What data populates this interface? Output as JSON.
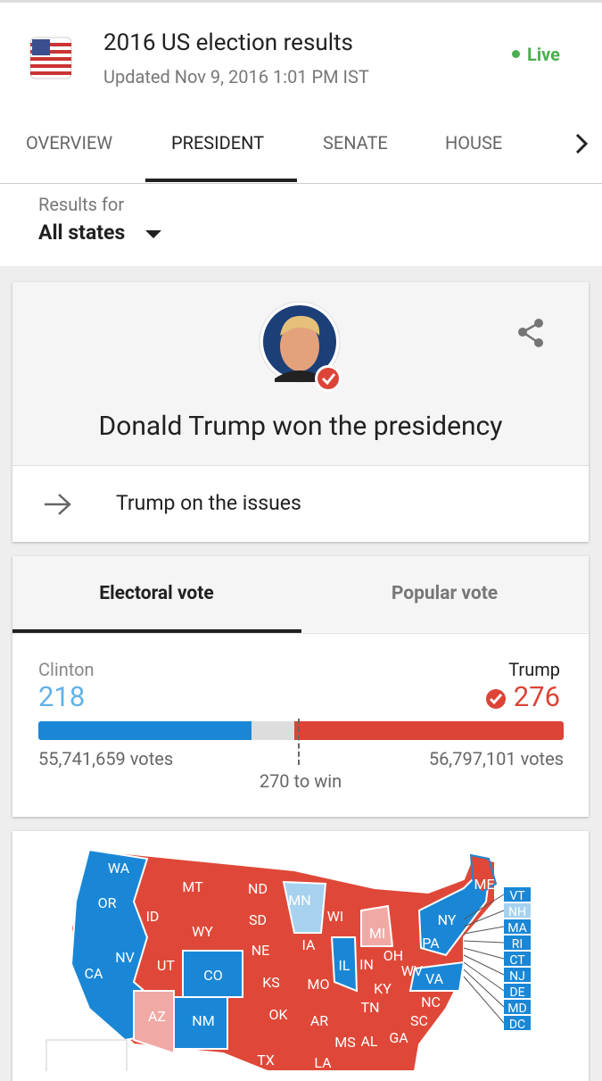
{
  "header": {
    "title": "2016 US election results",
    "updated": "Updated Nov 9, 2016 1:01 PM IST",
    "status": "Live"
  },
  "tabs": [
    "OVERVIEW",
    "PRESIDENT",
    "SENATE",
    "HOUSE"
  ],
  "filter": {
    "label": "Results for",
    "value": "All states"
  },
  "winner": {
    "headline": "Donald Trump won the presidency",
    "link": "Trump on the issues"
  },
  "vote_tabs": [
    "Electoral vote",
    "Popular vote"
  ],
  "results": {
    "candidates": [
      {
        "name": "Clinton",
        "electoral": 218,
        "popular": "55,741,659 votes"
      },
      {
        "name": "Trump",
        "electoral": 276,
        "popular": "56,797,101 votes"
      }
    ],
    "threshold": "270 to win"
  },
  "map": {
    "states": [
      "WA",
      "MT",
      "ND",
      "MN",
      "OR",
      "ID",
      "SD",
      "WI",
      "WY",
      "NY",
      "MI",
      "IA",
      "NE",
      "PA",
      "NV",
      "UT",
      "IL",
      "IN",
      "OH",
      "CO",
      "WV",
      "CA",
      "KS",
      "MO",
      "VA",
      "KY",
      "TN",
      "NC",
      "AZ",
      "NM",
      "OK",
      "AR",
      "SC",
      "GA",
      "AL",
      "MS",
      "TX",
      "LA",
      "ME"
    ],
    "small_states": [
      "VT",
      "NH",
      "MA",
      "RI",
      "CT",
      "NJ",
      "DE",
      "MD",
      "DC"
    ]
  }
}
